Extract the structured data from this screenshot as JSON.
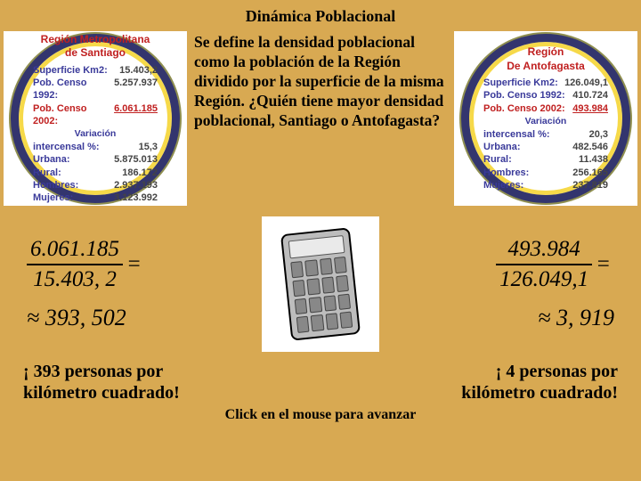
{
  "title": "Dinámica Poblacional",
  "middle_text": "Se define la densidad poblacional como la población de la Región dividido por la superficie de la misma Región. ¿Quién tiene mayor densidad poblacional, Santiago o Antofagasta?",
  "footer": "Click en el mouse para avanzar",
  "santiago": {
    "title_l1": "Región Metropolitana",
    "title_l2": "de Santiago",
    "superficie_lbl": "Superficie Km2:",
    "superficie_val": "15.403,2",
    "censo92_lbl": "Pob. Censo 1992:",
    "censo92_val": "5.257.937",
    "censo02_lbl": "Pob. Censo 2002:",
    "censo02_val": "6.061.185",
    "variacion_lbl": "Variación",
    "intercensal_lbl": "intercensal %:",
    "intercensal_val": "15,3",
    "urbana_lbl": "Urbana:",
    "urbana_val": "5.875.013",
    "rural_lbl": "Rural:",
    "rural_val": "186.172",
    "hombres_lbl": "Hombres:",
    "hombres_val": "2.937.193",
    "mujeres_lbl": "Mujeres:",
    "mujeres_val": "3.123.992",
    "frac_num": "6.061.185",
    "frac_den": "15.403, 2",
    "approx": "≈ 393, 502",
    "concl_l1": "¡ 393 personas por",
    "concl_l2": "kilómetro cuadrado!"
  },
  "antofagasta": {
    "title_l1": "Región",
    "title_l2": "De Antofagasta",
    "superficie_lbl": "Superficie Km2:",
    "superficie_val": "126.049,1",
    "censo92_lbl": "Pob. Censo 1992:",
    "censo92_val": "410.724",
    "censo02_lbl": "Pob. Censo 2002:",
    "censo02_val": "493.984",
    "variacion_lbl": "Variación",
    "intercensal_lbl": "intercensal %:",
    "intercensal_val": "20,3",
    "urbana_lbl": "Urbana:",
    "urbana_val": "482.546",
    "rural_lbl": "Rural:",
    "rural_val": "11.438",
    "hombres_lbl": "Hombres:",
    "hombres_val": "256.165",
    "mujeres_lbl": "Mujeres:",
    "mujeres_val": "237.819",
    "frac_num": "493.984",
    "frac_den": "126.049,1",
    "approx": "≈ 3, 919",
    "concl_l1": "¡ 4 personas por",
    "concl_l2": "kilómetro cuadrado!"
  },
  "colors": {
    "background": "#d8a952",
    "panel_bg": "#ffffff",
    "ring_outer": "#33356e",
    "ring_inner": "#f6d949",
    "label_blue": "#3a3a9a",
    "title_red": "#c02020"
  }
}
